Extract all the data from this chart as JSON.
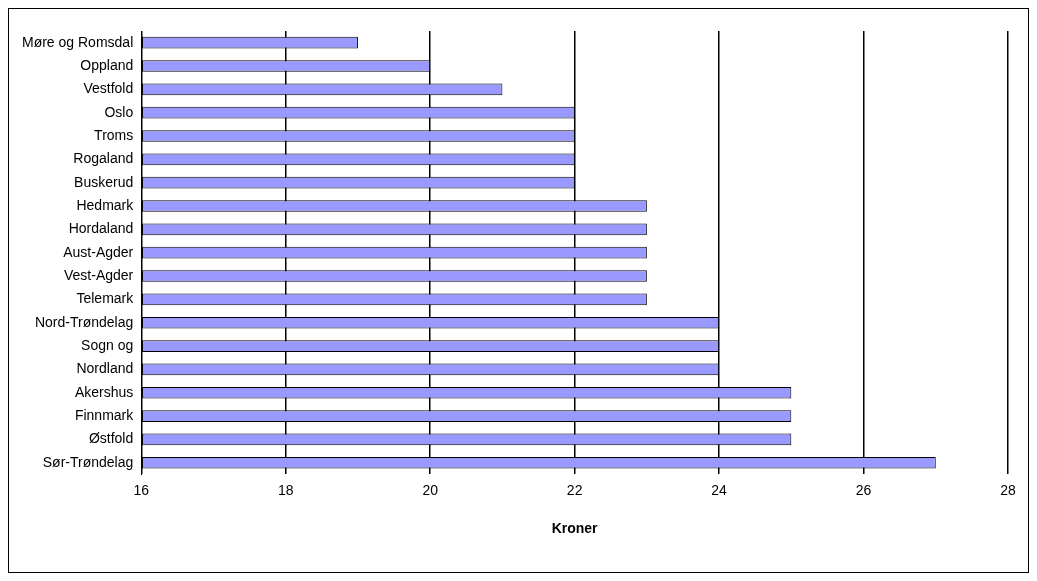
{
  "chart_data": {
    "type": "bar",
    "orientation": "horizontal",
    "xlabel": "Kroner",
    "categories": [
      "Møre og Romsdal",
      "Oppland",
      "Vestfold",
      "Oslo",
      "Troms",
      "Rogaland",
      "Buskerud",
      "Hedmark",
      "Hordaland",
      "Aust-Agder",
      "Vest-Agder",
      "Telemark",
      "Nord-Trøndelag",
      "Sogn og",
      "Nordland",
      "Akershus",
      "Finnmark",
      "Østfold",
      "Sør-Trøndelag"
    ],
    "values": [
      19,
      20,
      21,
      22,
      22,
      22,
      22,
      23,
      23,
      23,
      23,
      23,
      24,
      24,
      24,
      25,
      25,
      25,
      27
    ],
    "color": "#9999ff",
    "xlim": [
      16,
      28
    ],
    "xticks": [
      16,
      18,
      20,
      22,
      24,
      26,
      28
    ],
    "grid": "x",
    "legend": false
  }
}
